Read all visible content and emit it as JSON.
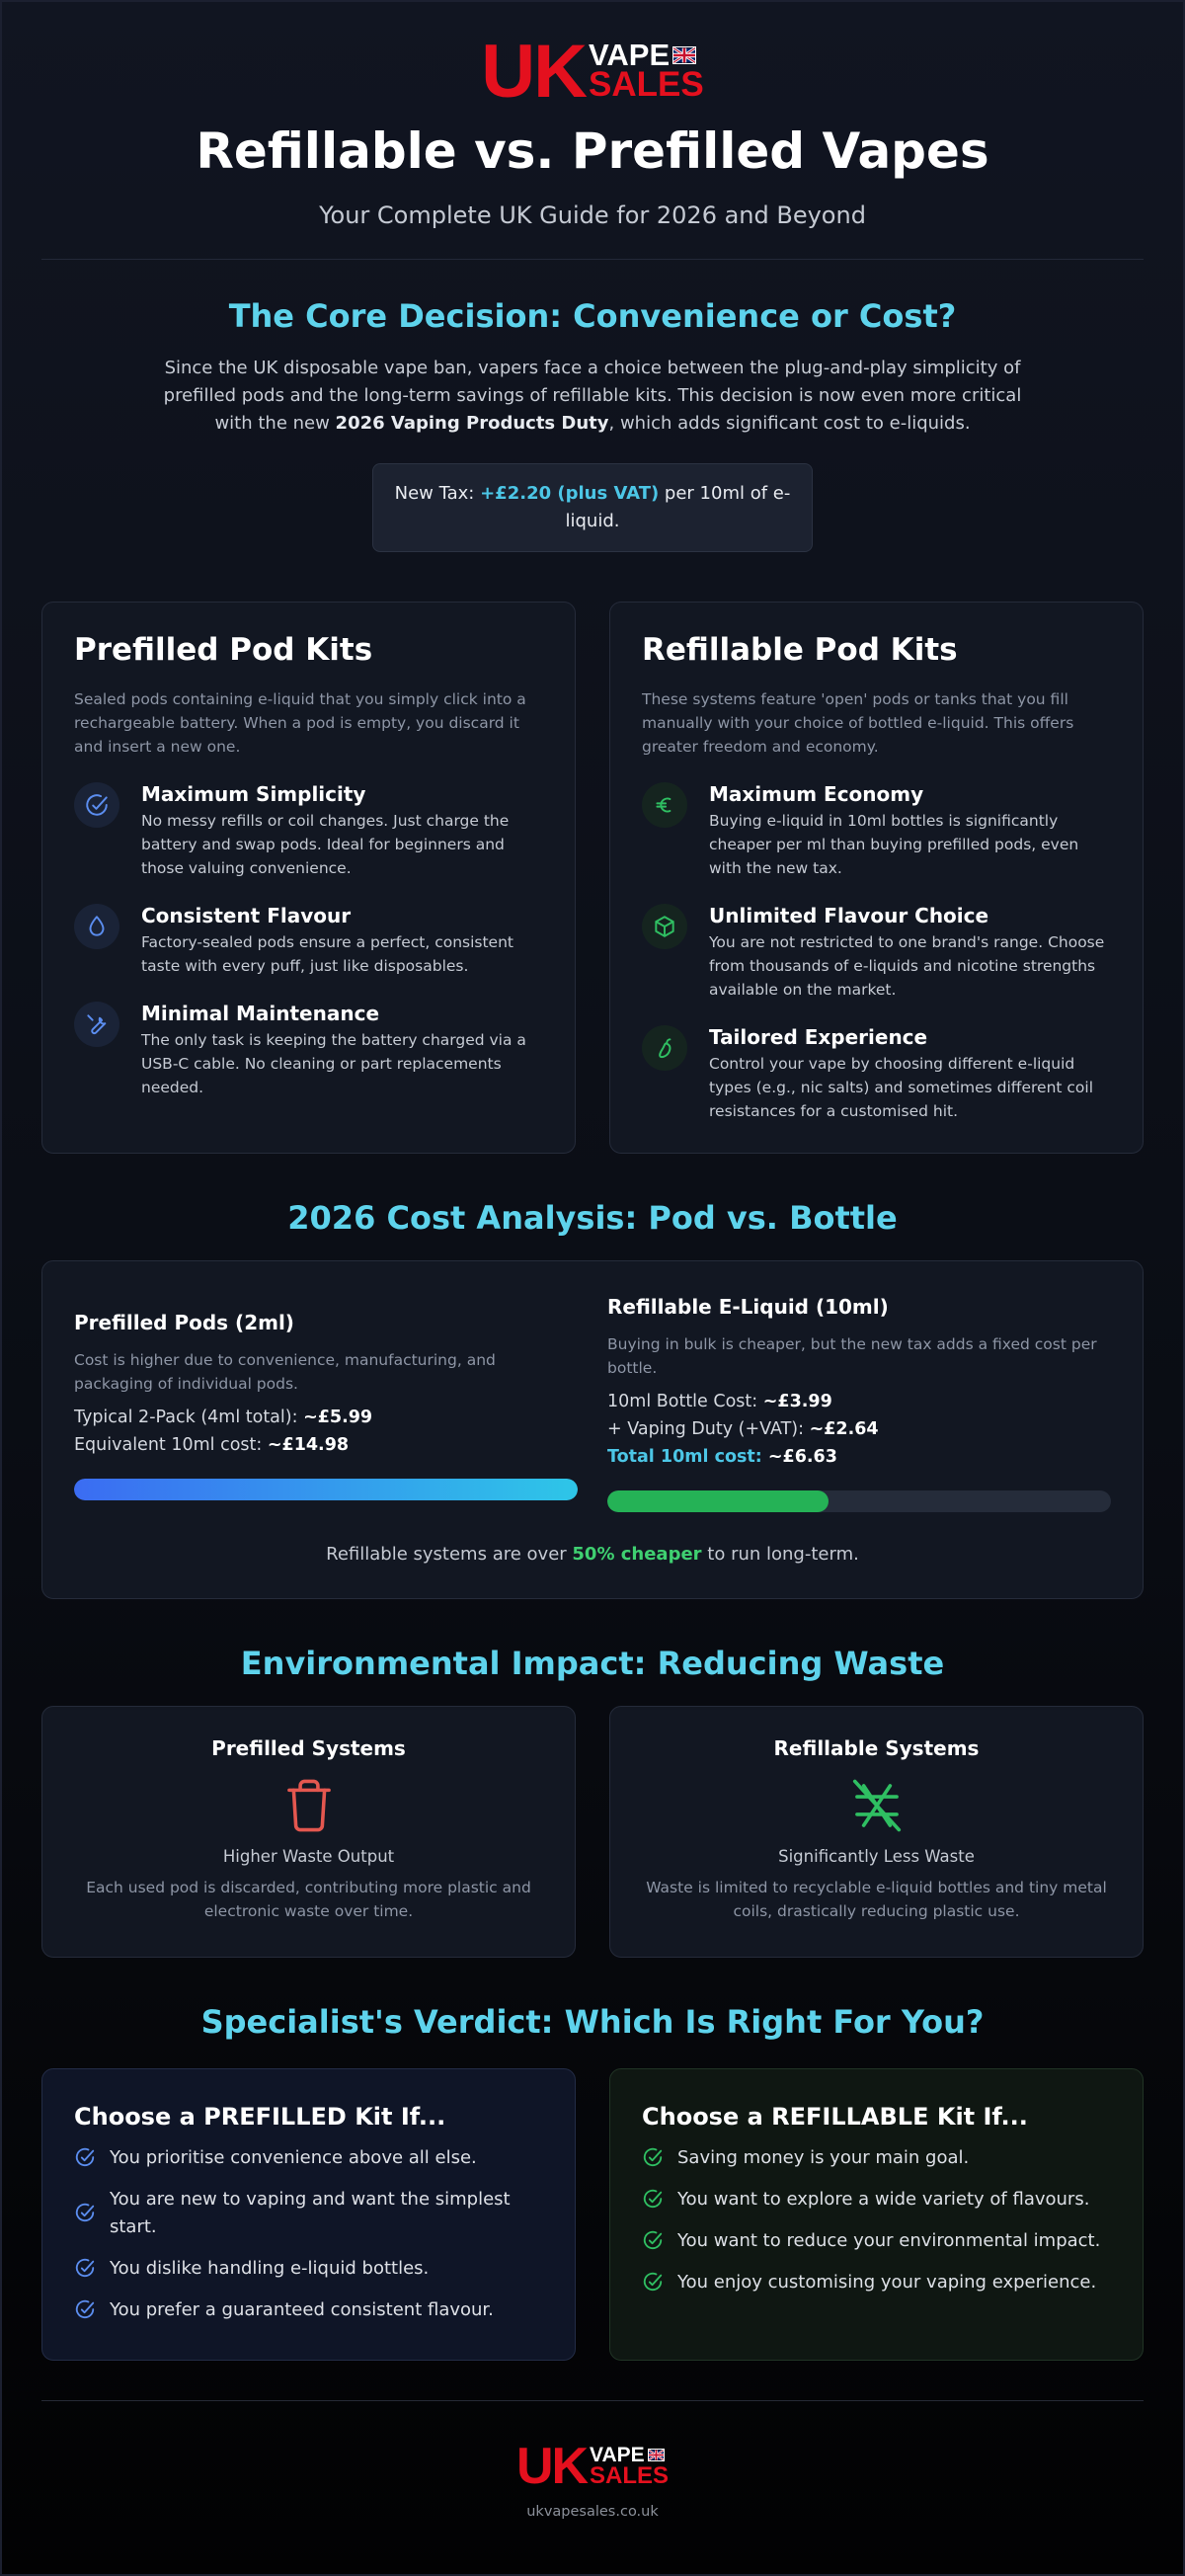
{
  "brand": {
    "uk": "UK",
    "vape": "VAPE",
    "sales": "SALES",
    "url": "ukvapesales.co.uk"
  },
  "header": {
    "title": "Refillable vs. Prefilled Vapes",
    "subtitle": "Your Complete UK Guide for 2026 and Beyond"
  },
  "core": {
    "title": "The Core Decision: Convenience or Cost?",
    "intro_before": "Since the UK disposable vape ban, vapers face a choice between the plug-and-play simplicity of prefilled pods and the long-term savings of refillable kits. This decision is now even more critical with the new ",
    "intro_bold": "2026 Vaping Products Duty",
    "intro_after": ", which adds significant cost to e-liquids.",
    "tax_prefix": "New Tax: ",
    "tax_value": "+£2.20 (plus VAT)",
    "tax_suffix": " per 10ml of e-liquid."
  },
  "prefilled": {
    "title": "Prefilled Pod Kits",
    "description": "Sealed pods containing e-liquid that you simply click into a rechargeable battery. When a pod is empty, you discard it and insert a new one.",
    "features": [
      {
        "icon": "check-circle-icon",
        "title": "Maximum Simplicity",
        "text": "No messy refills or coil changes. Just charge the battery and swap pods. Ideal for beginners and those valuing convenience."
      },
      {
        "icon": "droplet-icon",
        "title": "Consistent Flavour",
        "text": "Factory-sealed pods ensure a perfect, consistent taste with every puff, just like disposables."
      },
      {
        "icon": "wrench-icon",
        "title": "Minimal Maintenance",
        "text": "The only task is keeping the battery charged via a USB-C cable. No cleaning or part replacements needed."
      }
    ]
  },
  "refillable": {
    "title": "Refillable Pod Kits",
    "description": "These systems feature 'open' pods or tanks that you fill manually with your choice of bottled e-liquid. This offers greater freedom and economy.",
    "features": [
      {
        "icon": "euro-icon",
        "title": "Maximum Economy",
        "text": "Buying e-liquid in 10ml bottles is significantly cheaper per ml than buying prefilled pods, even with the new tax."
      },
      {
        "icon": "box-icon",
        "title": "Unlimited Flavour Choice",
        "text": "You are not restricted to one brand's range. Choose from thousands of e-liquids and nicotine strengths available on the market."
      },
      {
        "icon": "pepper-icon",
        "title": "Tailored Experience",
        "text": "Control your vape by choosing different e-liquid types (e.g., nic salts) and sometimes different coil resistances for a customised hit."
      }
    ]
  },
  "cost": {
    "title": "2026 Cost Analysis: Pod vs. Bottle",
    "pods": {
      "title": "Prefilled Pods (2ml)",
      "description": "Cost is higher due to convenience, manufacturing, and packaging of individual pods.",
      "line1_label": "Typical 2-Pack (4ml total): ",
      "line1_value": "~£5.99",
      "line2_label": "Equivalent 10ml cost: ",
      "line2_value": "~£14.98",
      "bar_fraction": 1.0
    },
    "liquid": {
      "title": "Refillable E-Liquid (10ml)",
      "description": "Buying in bulk is cheaper, but the new tax adds a fixed cost per bottle.",
      "line1_label": "10ml Bottle Cost: ",
      "line1_value": "~£3.99",
      "line2_label": "+ Vaping Duty (+VAT): ",
      "line2_value": "~£2.64",
      "total_label": "Total 10ml cost: ",
      "total_value": "~£6.63",
      "bar_fraction": 0.44
    },
    "note_before": "Refillable systems are over ",
    "note_bold": "50% cheaper",
    "note_after": " to run long-term."
  },
  "environment": {
    "title": "Environmental Impact: Reducing Waste",
    "prefilled": {
      "title": "Prefilled Systems",
      "icon": "trash-icon",
      "label": "Higher Waste Output",
      "text": "Each used pod is discarded, contributing more plastic and electronic waste over time."
    },
    "refillable": {
      "title": "Refillable Systems",
      "icon": "recycle-slash-icon",
      "label": "Significantly Less Waste",
      "text": "Waste is limited to recyclable e-liquid bottles and tiny metal coils, drastically reducing plastic use."
    }
  },
  "verdict": {
    "title": "Specialist's Verdict: Which Is Right For You?",
    "prefilled": {
      "title": "Choose a PREFILLED Kit If...",
      "items": [
        "You prioritise convenience above all else.",
        "You are new to vaping and want the simplest start.",
        "You dislike handling e-liquid bottles.",
        "You prefer a guaranteed consistent flavour."
      ]
    },
    "refillable": {
      "title": "Choose a REFILLABLE Kit If...",
      "items": [
        "Saving money is your main goal.",
        "You want to explore a wide variety of flavours.",
        "You want to reduce your environmental impact.",
        "You enjoy customising your vaping experience."
      ]
    }
  },
  "colors": {
    "accent_cyan": "#5ed3ec",
    "brand_red": "#e4101e",
    "pod_blue": "#3b82f6",
    "refill_green": "#25b256"
  }
}
